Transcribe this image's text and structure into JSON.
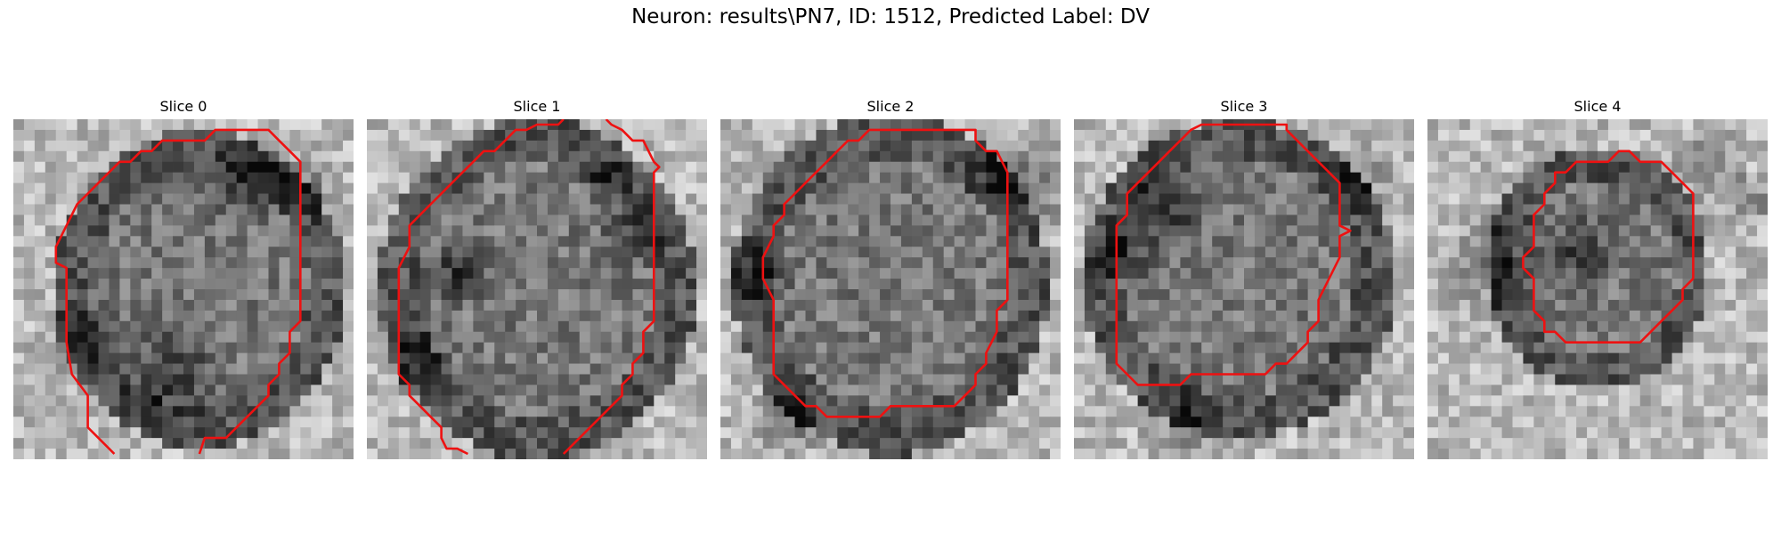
{
  "figure": {
    "title": "Neuron: results\\PN7, ID: 1512, Predicted Label: DV"
  },
  "slices": [
    {
      "label": "Slice 0"
    },
    {
      "label": "Slice 1"
    },
    {
      "label": "Slice 2"
    },
    {
      "label": "Slice 3"
    },
    {
      "label": "Slice 4"
    }
  ],
  "style": {
    "contour_color": "#ee1111",
    "colormap": "gray"
  }
}
